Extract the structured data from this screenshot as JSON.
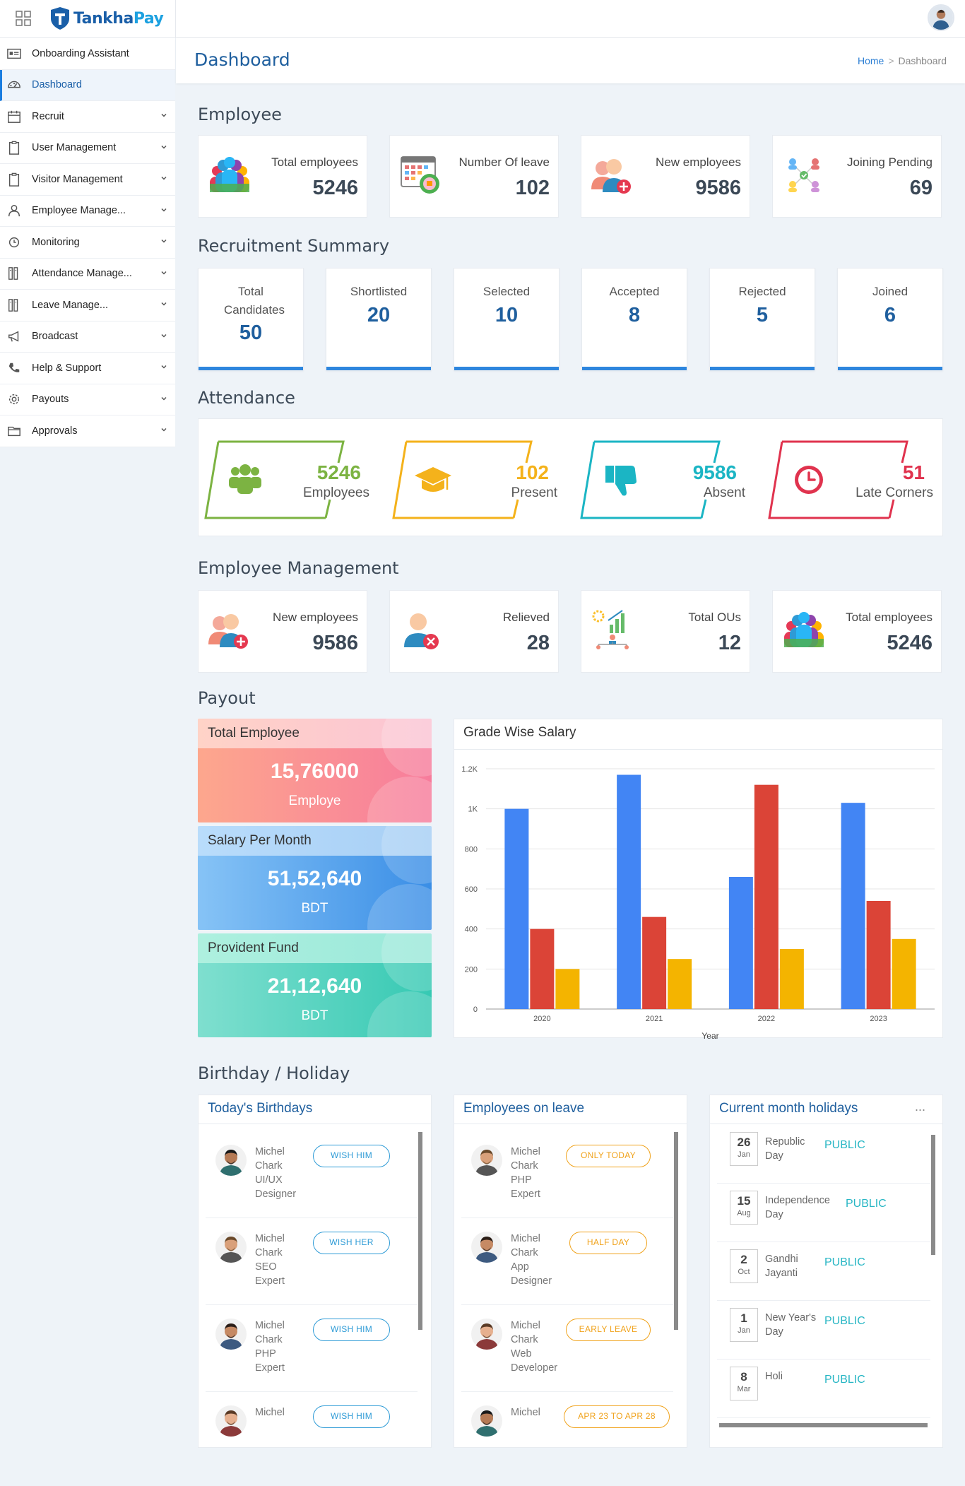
{
  "brand": {
    "part1": "Tankha",
    "part2": "Pay"
  },
  "sidebar": {
    "items": [
      {
        "label": "Onboarding Assistant",
        "icon": "id-card-icon",
        "chevron": false
      },
      {
        "label": "Dashboard",
        "icon": "dashboard-icon",
        "chevron": false,
        "active": true
      },
      {
        "label": "Recruit",
        "icon": "calendar-icon",
        "chevron": true
      },
      {
        "label": "User Management",
        "icon": "clipboard-icon",
        "chevron": true
      },
      {
        "label": "Visitor Management",
        "icon": "clipboard-icon",
        "chevron": true
      },
      {
        "label": "Employee Manage...",
        "icon": "user-icon",
        "chevron": true
      },
      {
        "label": "Monitoring",
        "icon": "clock-icon",
        "chevron": true
      },
      {
        "label": "Attendance Manage...",
        "icon": "columns-icon",
        "chevron": true
      },
      {
        "label": "Leave Manage...",
        "icon": "columns-icon",
        "chevron": true
      },
      {
        "label": "Broadcast",
        "icon": "megaphone-icon",
        "chevron": true
      },
      {
        "label": "Help & Support",
        "icon": "phone-icon",
        "chevron": true
      },
      {
        "label": "Payouts",
        "icon": "gear-icon",
        "chevron": true
      },
      {
        "label": "Approvals",
        "icon": "folder-icon",
        "chevron": true
      }
    ]
  },
  "header": {
    "title": "Dashboard",
    "breadcrumb_home": "Home",
    "breadcrumb_current": "Dashboard"
  },
  "sections": {
    "employee": "Employee",
    "recruitment": "Recruitment Summary",
    "attendance": "Attendance",
    "employee_management": "Employee Management",
    "payout": "Payout",
    "birthday_holiday": "Birthday / Holiday"
  },
  "employee_cards": [
    {
      "label": "Total employees",
      "value": "5246",
      "icon": "people-group-icon"
    },
    {
      "label": "Number Of leave",
      "value": "102",
      "icon": "calendar-leave-icon"
    },
    {
      "label": "New employees",
      "value": "9586",
      "icon": "add-user-icon"
    },
    {
      "label": "Joining Pending",
      "value": "69",
      "icon": "network-people-icon"
    }
  ],
  "recruitment": [
    {
      "label": "Total Candidates",
      "value": "50"
    },
    {
      "label": "Shortlisted",
      "value": "20"
    },
    {
      "label": "Selected",
      "value": "10"
    },
    {
      "label": "Accepted",
      "value": "8"
    },
    {
      "label": "Rejected",
      "value": "5"
    },
    {
      "label": "Joined",
      "value": "6"
    }
  ],
  "attendance": [
    {
      "value": "5246",
      "label": "Employees",
      "color": "#7cb342",
      "icon": "users-icon"
    },
    {
      "value": "102",
      "label": "Present",
      "color": "#f4b21b",
      "icon": "graduation-cap-icon"
    },
    {
      "value": "9586",
      "label": "Absent",
      "color": "#1bb5c4",
      "icon": "thumbs-down-icon"
    },
    {
      "value": "51",
      "label": "Late Corners",
      "color": "#e0334e",
      "icon": "clock-icon"
    }
  ],
  "employee_management": [
    {
      "label": "New employees",
      "value": "9586",
      "icon": "add-user-icon"
    },
    {
      "label": "Relieved",
      "value": "28",
      "icon": "remove-user-icon"
    },
    {
      "label": "Total OUs",
      "value": "12",
      "icon": "org-chart-icon"
    },
    {
      "label": "Total employees",
      "value": "5246",
      "icon": "people-group-icon"
    }
  ],
  "payout": [
    {
      "title": "Total Employee",
      "value": "15,76000",
      "unit": "Employe"
    },
    {
      "title": "Salary Per Month",
      "value": "51,52,640",
      "unit": "BDT"
    },
    {
      "title": "Provident Fund",
      "value": "21,12,640",
      "unit": "BDT"
    }
  ],
  "chart_data": {
    "type": "bar",
    "title": "Grade Wise Salary",
    "categories": [
      "2020",
      "2021",
      "2022",
      "2023"
    ],
    "series": [
      {
        "color": "#4285f4",
        "values": [
          1000,
          1170,
          660,
          1030
        ]
      },
      {
        "color": "#db4437",
        "values": [
          400,
          460,
          1120,
          540
        ]
      },
      {
        "color": "#f4b400",
        "values": [
          200,
          250,
          300,
          350
        ]
      }
    ],
    "xlabel": "Year",
    "ylabel": "",
    "ylim": [
      0,
      1200
    ],
    "yticks": [
      "0",
      "200",
      "400",
      "600",
      "800",
      "1K",
      "1.2K"
    ],
    "grid": true
  },
  "birthdays": {
    "title": "Today's Birthdays",
    "rows": [
      {
        "name1": "Michel",
        "name2": "Chark",
        "role1": "UI/UX",
        "role2": "Designer",
        "action": "WISH HIM"
      },
      {
        "name1": "Michel",
        "name2": "Chark",
        "role1": "SEO",
        "role2": "Expert",
        "action": "WISH HER"
      },
      {
        "name1": "Michel",
        "name2": "Chark",
        "role1": "PHP",
        "role2": "Expert",
        "action": "WISH HIM"
      },
      {
        "name1": "Michel",
        "name2": "",
        "role1": "",
        "role2": "",
        "action": "WISH HIM"
      }
    ]
  },
  "leave": {
    "title": "Employees on leave",
    "rows": [
      {
        "name1": "Michel",
        "name2": "Chark",
        "role1": "PHP",
        "role2": "Expert",
        "status": "ONLY TODAY"
      },
      {
        "name1": "Michel",
        "name2": "Chark",
        "role1": "App",
        "role2": "Designer",
        "status": "HALF DAY"
      },
      {
        "name1": "Michel",
        "name2": "Chark",
        "role1": "Web",
        "role2": "Developer",
        "status": "EARLY LEAVE"
      },
      {
        "name1": "Michel",
        "name2": "",
        "role1": "",
        "role2": "",
        "status": "APR 23 TO APR 28"
      }
    ]
  },
  "holidays": {
    "title": "Current month holidays",
    "more": "...",
    "rows": [
      {
        "day": "26",
        "month": "Jan",
        "name1": "Republic",
        "name2": "Day",
        "type": "PUBLIC"
      },
      {
        "day": "15",
        "month": "Aug",
        "name1": "Independence",
        "name2": "Day",
        "type": "PUBLIC"
      },
      {
        "day": "2",
        "month": "Oct",
        "name1": "Gandhi",
        "name2": "Jayanti",
        "type": "PUBLIC"
      },
      {
        "day": "1",
        "month": "Jan",
        "name1": "New Year's",
        "name2": "Day",
        "type": "PUBLIC"
      },
      {
        "day": "8",
        "month": "Mar",
        "name1": "Holi",
        "name2": "",
        "type": "PUBLIC"
      }
    ]
  }
}
